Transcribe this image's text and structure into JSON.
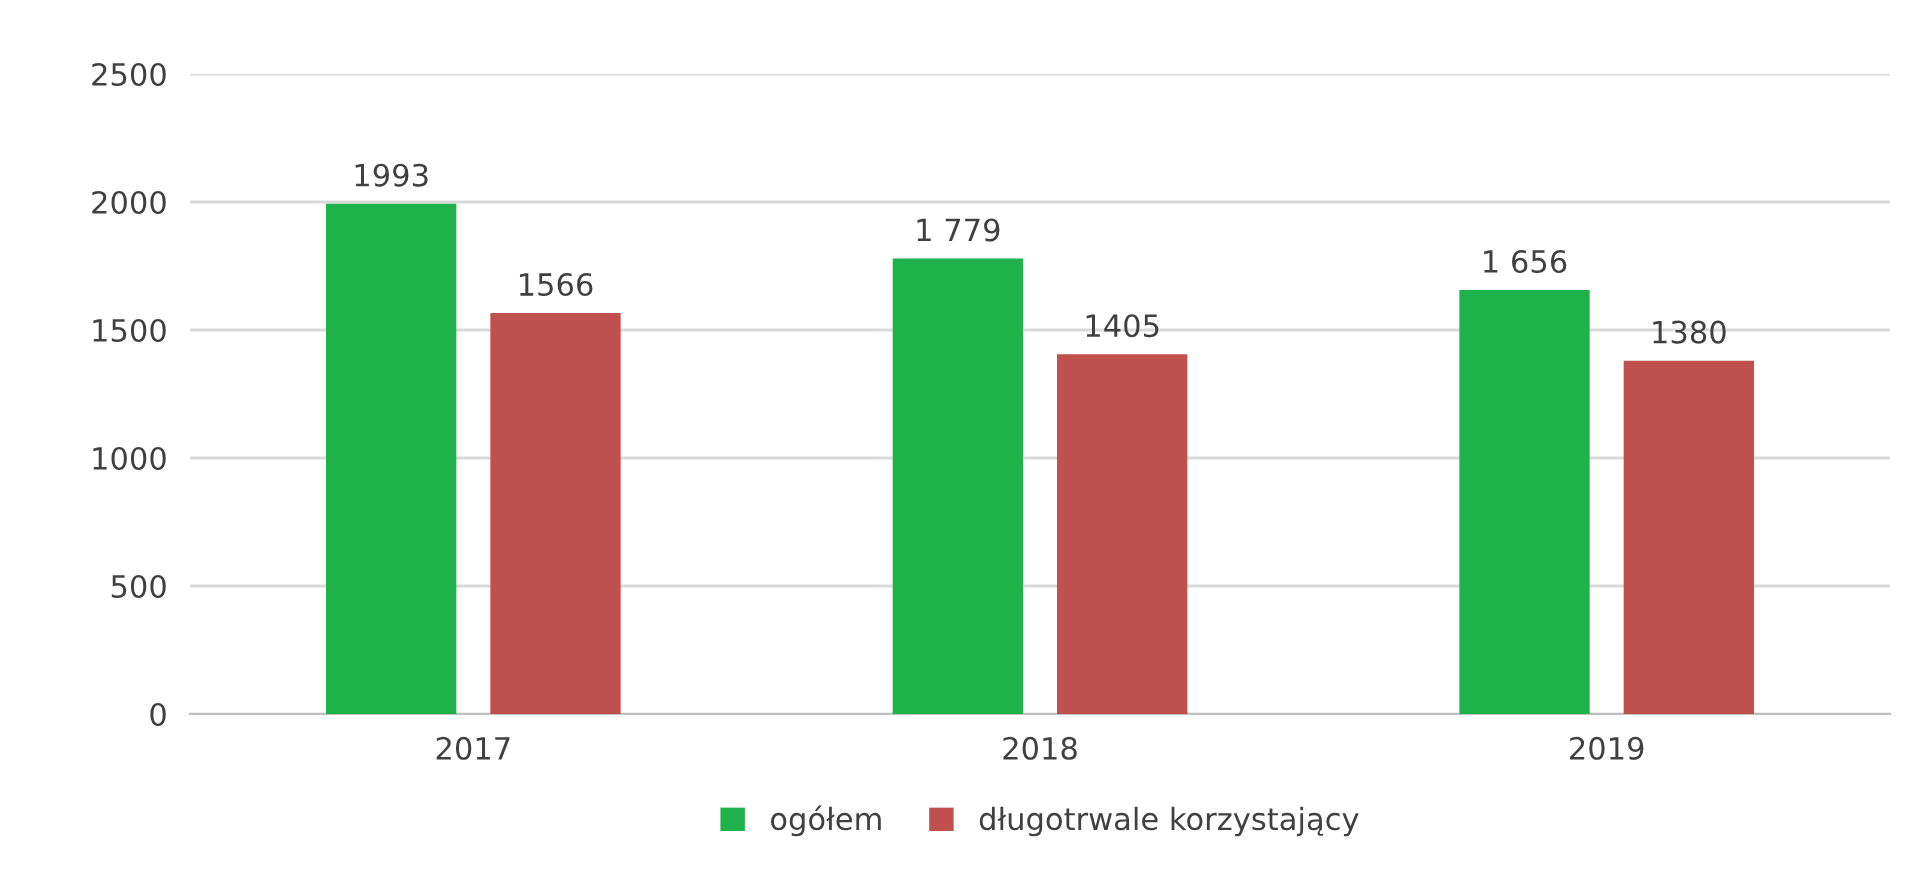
{
  "chart_data": {
    "type": "bar",
    "categories": [
      "2017",
      "2018",
      "2019"
    ],
    "series": [
      {
        "name": "ogółem",
        "color": "#1fb24a",
        "values": [
          1993,
          1779,
          1656
        ],
        "value_labels": [
          "1993",
          "1 779",
          "1 656"
        ]
      },
      {
        "name": "długotrwale korzystający",
        "color": "#c0504d",
        "values": [
          1566,
          1405,
          1380
        ],
        "value_labels": [
          "1566",
          "1405",
          "1380"
        ]
      }
    ],
    "ylim": [
      0,
      2500
    ],
    "yticks": [
      0,
      500,
      1000,
      1500,
      2000,
      2500
    ],
    "grid": "y",
    "legend": "bottom"
  }
}
